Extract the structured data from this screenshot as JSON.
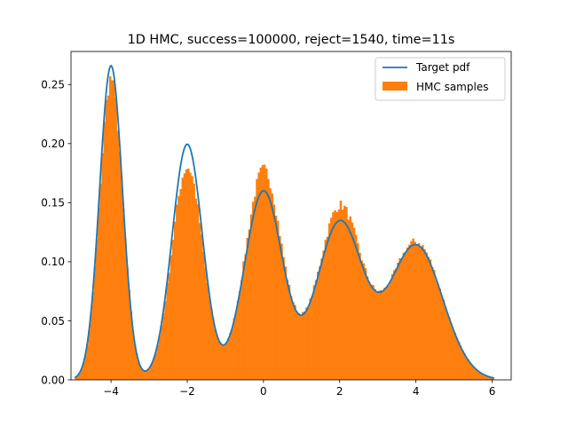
{
  "chart_data": {
    "type": "histogram+line",
    "title": "1D HMC, success=100000, reject=1540, time=11s",
    "xlabel": "",
    "ylabel": "",
    "xlim": [
      -5.05,
      6.5
    ],
    "ylim": [
      0,
      0.278
    ],
    "x_ticks": [
      -4,
      -2,
      0,
      2,
      4,
      6
    ],
    "x_tick_labels": [
      "−4",
      "−2",
      "0",
      "2",
      "4",
      "6"
    ],
    "y_ticks": [
      0.0,
      0.05,
      0.1,
      0.15,
      0.2,
      0.25
    ],
    "y_tick_labels": [
      "0.00",
      "0.05",
      "0.10",
      "0.15",
      "0.20",
      "0.25"
    ],
    "grid": false,
    "legend_position": "upper right",
    "target_pdf": {
      "name": "Target pdf",
      "color": "#1f77b4",
      "components": [
        {
          "mu": -4,
          "sigma": 0.3,
          "weight": 0.2
        },
        {
          "mu": -2,
          "sigma": 0.4,
          "weight": 0.2
        },
        {
          "mu": 0,
          "sigma": 0.5,
          "weight": 0.2
        },
        {
          "mu": 2,
          "sigma": 0.6,
          "weight": 0.2
        },
        {
          "mu": 4,
          "sigma": 0.7,
          "weight": 0.2
        }
      ],
      "x_range": [
        -4.95,
        6.05
      ]
    },
    "hmc_samples": {
      "name": "HMC samples",
      "color": "#ff7f0e",
      "bin_count": 220,
      "x_range": [
        -4.95,
        6.05
      ],
      "peak_heights": [
        {
          "x": -4.0,
          "y": 0.255
        },
        {
          "x": -2.0,
          "y": 0.18
        },
        {
          "x": 0.0,
          "y": 0.178
        },
        {
          "x": 2.0,
          "y": 0.148
        },
        {
          "x": 4.0,
          "y": 0.117
        }
      ]
    }
  }
}
